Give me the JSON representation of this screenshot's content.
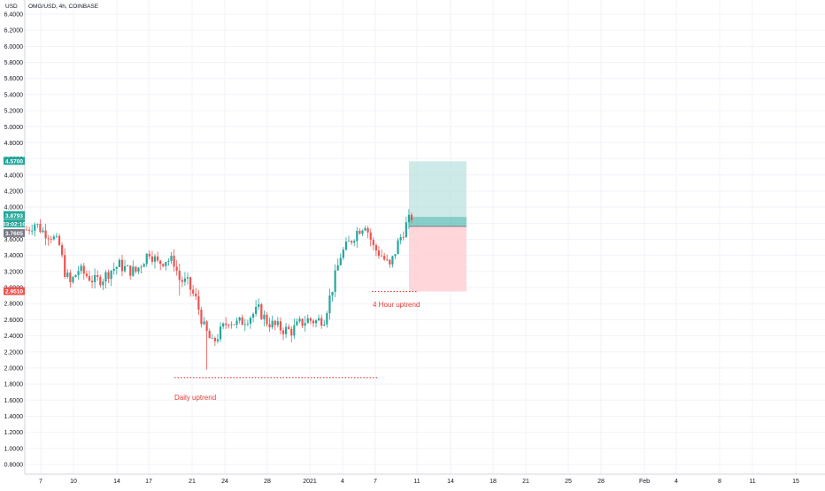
{
  "header": {
    "currency": "USD",
    "symbol_line": "OMG/USD, 4h, COINBASE"
  },
  "colors": {
    "up": "#26a69a",
    "down": "#ef5350",
    "grid": "#f0f3fa",
    "axis_text": "#131722",
    "annotation": "#e53935",
    "target_zone": "#b2dfdb",
    "stop_zone": "#ffcdd2",
    "target_line_zone": "#26a69a"
  },
  "chart_data": {
    "type": "candlestick",
    "ylim": [
      0.7,
      6.6
    ],
    "y_ticks": [
      "6.4000",
      "6.2000",
      "6.0000",
      "5.8000",
      "5.6000",
      "5.4000",
      "5.2000",
      "5.0000",
      "4.8000",
      "4.6000",
      "4.4000",
      "4.2000",
      "4.0000",
      "3.8000",
      "3.6000",
      "3.4000",
      "3.2000",
      "3.0000",
      "2.8000",
      "2.6000",
      "2.4000",
      "2.2000",
      "2.0000",
      "1.8000",
      "1.6000",
      "1.4000",
      "1.2000",
      "1.0000",
      "0.8000"
    ],
    "x_ticks": [
      "7",
      "10",
      "14",
      "17",
      "21",
      "24",
      "28",
      "2021",
      "4",
      "7",
      "11",
      "14",
      "18",
      "21",
      "25",
      "28",
      "Feb",
      "4",
      "8",
      "11",
      "15"
    ],
    "price_badges": {
      "target": "4.5700",
      "last": "3.8793",
      "countdown": "03:02:10",
      "entry": "3.7605",
      "stop": "2.9510"
    },
    "annotations": {
      "daily": "Daily uptrend",
      "four_hour": "4 Hour uptrend"
    },
    "support_levels": {
      "daily": 1.88,
      "four_hour": 2.95
    },
    "position": {
      "target": 4.57,
      "entry": 3.7605,
      "last": 3.8793,
      "stop": 2.951
    },
    "price_path": [
      [
        0,
        3.72
      ],
      [
        3,
        3.8
      ],
      [
        6,
        3.7
      ],
      [
        9,
        3.65
      ],
      [
        12,
        3.52
      ],
      [
        14,
        3.2
      ],
      [
        16,
        3.05
      ],
      [
        19,
        3.22
      ],
      [
        22,
        3.15
      ],
      [
        25,
        3.08
      ],
      [
        28,
        3.12
      ],
      [
        31,
        3.22
      ],
      [
        34,
        3.28
      ],
      [
        37,
        3.22
      ],
      [
        40,
        3.2
      ],
      [
        43,
        3.35
      ],
      [
        45,
        3.45
      ],
      [
        48,
        3.3
      ],
      [
        51,
        3.35
      ],
      [
        54,
        3.32
      ],
      [
        56,
        3.1
      ],
      [
        59,
        3.05
      ],
      [
        62,
        2.85
      ],
      [
        65,
        2.5
      ],
      [
        68,
        2.3
      ],
      [
        71,
        2.45
      ],
      [
        74,
        2.6
      ],
      [
        77,
        2.55
      ],
      [
        79,
        2.58
      ],
      [
        82,
        2.65
      ],
      [
        85,
        2.72
      ],
      [
        88,
        2.58
      ],
      [
        91,
        2.52
      ],
      [
        94,
        2.48
      ],
      [
        97,
        2.46
      ],
      [
        100,
        2.55
      ],
      [
        103,
        2.6
      ],
      [
        106,
        2.58
      ],
      [
        109,
        2.62
      ],
      [
        112,
        3.0
      ],
      [
        115,
        3.4
      ],
      [
        118,
        3.55
      ],
      [
        121,
        3.7
      ],
      [
        124,
        3.8
      ],
      [
        127,
        3.5
      ],
      [
        130,
        3.4
      ],
      [
        133,
        3.25
      ],
      [
        136,
        3.55
      ],
      [
        139,
        3.78
      ],
      [
        141,
        3.88
      ]
    ],
    "n_candles": 142
  }
}
